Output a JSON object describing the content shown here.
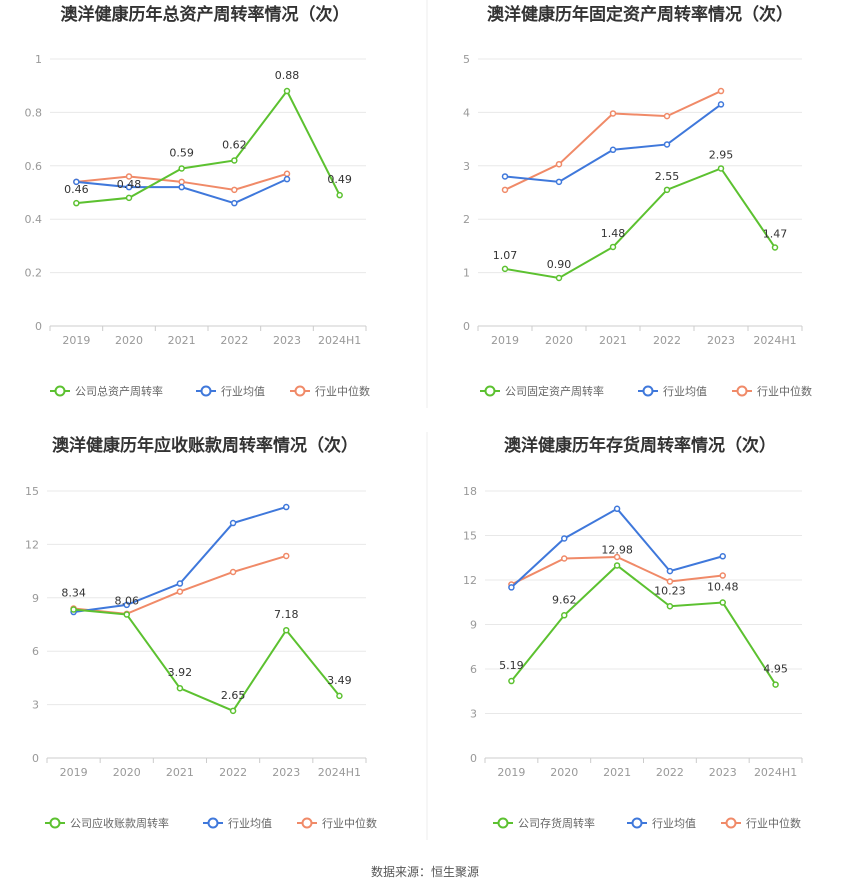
{
  "source": "数据来源：恒生聚源",
  "colors": {
    "company": "#5cc130",
    "avg": "#3f78db",
    "median": "#f08a68"
  },
  "legend_common": {
    "avg": "行业均值",
    "median": "行业中位数"
  },
  "chart_data": [
    {
      "type": "line",
      "title": "澳洋健康历年总资产周转率情况（次）",
      "categories": [
        "2019",
        "2020",
        "2021",
        "2022",
        "2023",
        "2024H1"
      ],
      "yticks": [
        "0",
        "0.2",
        "0.4",
        "0.6",
        "0.8",
        "1"
      ],
      "ylim": [
        0,
        1
      ],
      "series": [
        {
          "key": "company",
          "name": "公司总资产周转率",
          "values": [
            0.46,
            0.48,
            0.59,
            0.62,
            0.88,
            0.49
          ],
          "labels": [
            "0.46",
            "0.48",
            "0.59",
            "0.62",
            "0.88",
            "0.49"
          ]
        },
        {
          "key": "avg",
          "name": "行业均值",
          "values": [
            0.54,
            0.52,
            0.52,
            0.46,
            0.55,
            null
          ]
        },
        {
          "key": "median",
          "name": "行业中位数",
          "values": [
            0.54,
            0.56,
            0.54,
            0.51,
            0.57,
            null
          ]
        }
      ]
    },
    {
      "type": "line",
      "title": "澳洋健康历年固定资产周转率情况（次）",
      "categories": [
        "2019",
        "2020",
        "2021",
        "2022",
        "2023",
        "2024H1"
      ],
      "yticks": [
        "0",
        "1",
        "2",
        "3",
        "4",
        "5"
      ],
      "ylim": [
        0,
        5
      ],
      "series": [
        {
          "key": "company",
          "name": "公司固定资产周转率",
          "values": [
            1.07,
            0.9,
            1.48,
            2.55,
            2.95,
            1.47
          ],
          "labels": [
            "1.07",
            "0.90",
            "1.48",
            "2.55",
            "2.95",
            "1.47"
          ]
        },
        {
          "key": "avg",
          "name": "行业均值",
          "values": [
            2.8,
            2.7,
            3.3,
            3.4,
            4.15,
            null
          ]
        },
        {
          "key": "median",
          "name": "行业中位数",
          "values": [
            2.55,
            3.03,
            3.98,
            3.93,
            4.4,
            null
          ]
        }
      ]
    },
    {
      "type": "line",
      "title": "澳洋健康历年应收账款周转率情况（次）",
      "categories": [
        "2019",
        "2020",
        "2021",
        "2022",
        "2023",
        "2024H1"
      ],
      "yticks": [
        "0",
        "3",
        "6",
        "9",
        "12",
        "15"
      ],
      "ylim": [
        0,
        15
      ],
      "series": [
        {
          "key": "company",
          "name": "公司应收账款周转率",
          "values": [
            8.34,
            8.06,
            3.92,
            2.65,
            7.18,
            3.49
          ],
          "labels": [
            "8.34",
            "8.06",
            "3.92",
            "2.65",
            "7.18",
            "3.49"
          ]
        },
        {
          "key": "avg",
          "name": "行业均值",
          "values": [
            8.2,
            8.6,
            9.8,
            13.2,
            14.1,
            null
          ]
        },
        {
          "key": "median",
          "name": "行业中位数",
          "values": [
            8.4,
            8.1,
            9.35,
            10.45,
            11.35,
            null
          ]
        }
      ]
    },
    {
      "type": "line",
      "title": "澳洋健康历年存货周转率情况（次）",
      "categories": [
        "2019",
        "2020",
        "2021",
        "2022",
        "2023",
        "2024H1"
      ],
      "yticks": [
        "0",
        "3",
        "6",
        "9",
        "12",
        "15",
        "18"
      ],
      "ylim": [
        0,
        18
      ],
      "series": [
        {
          "key": "company",
          "name": "公司存货周转率",
          "values": [
            5.19,
            9.62,
            12.98,
            10.23,
            10.48,
            4.95
          ],
          "labels": [
            "5.19",
            "9.62",
            "12.98",
            "10.23",
            "10.48",
            "4.95"
          ]
        },
        {
          "key": "avg",
          "name": "行业均值",
          "values": [
            11.5,
            14.8,
            16.8,
            12.6,
            13.6,
            null
          ]
        },
        {
          "key": "median",
          "name": "行业中位数",
          "values": [
            11.7,
            13.45,
            13.55,
            11.9,
            12.3,
            null
          ]
        }
      ]
    }
  ]
}
